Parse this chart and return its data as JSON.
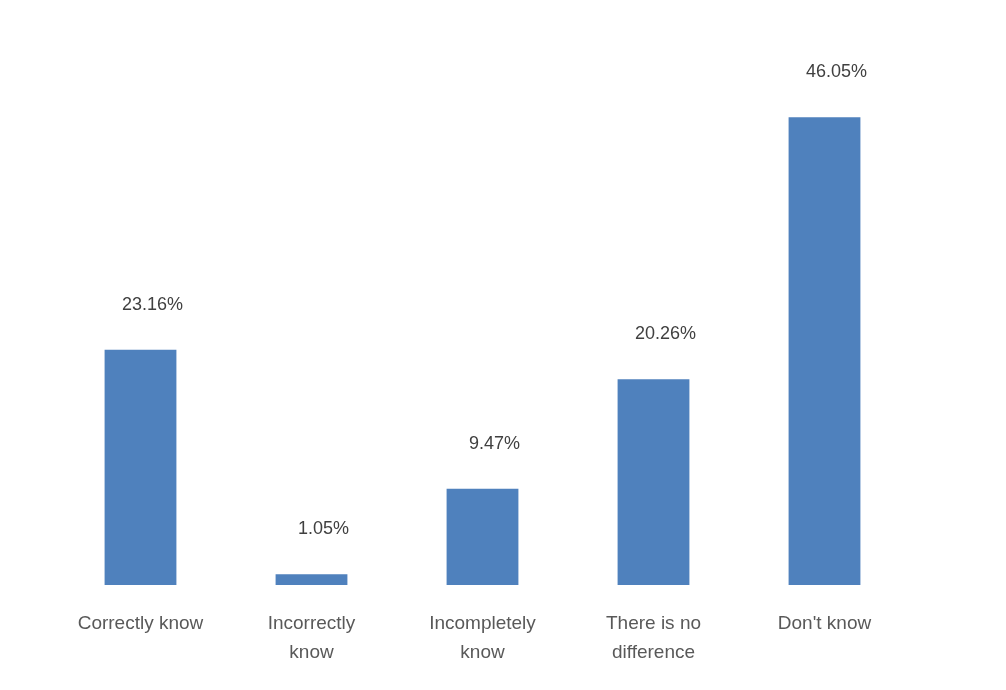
{
  "chart_data": {
    "type": "bar",
    "categories": [
      "Correctly know",
      "Incorrectly know",
      "Incompletely know",
      "There is no difference",
      "Don't know"
    ],
    "values": [
      23.16,
      1.05,
      9.47,
      20.26,
      46.05
    ],
    "color": "#4f81bd",
    "value_labels": [
      "23.16%",
      "1.05%",
      "9.47%",
      "20.26%",
      "46.05%"
    ]
  }
}
